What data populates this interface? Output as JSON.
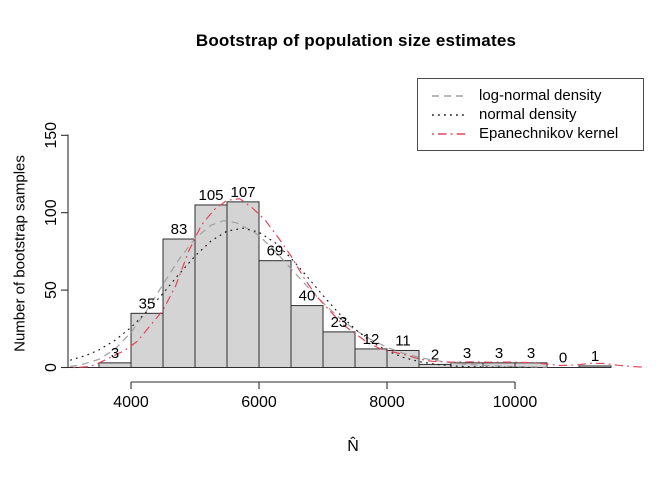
{
  "title": "Bootstrap of population size estimates",
  "xlabel": "N̂",
  "ylabel": "Number of bootstrap samples",
  "colors": {
    "bar_fill": "#d4d4d4",
    "bar_border": "#2e2e2e",
    "axis": "#2e2e2e",
    "text": "#000000",
    "lognormal": "#a0a0a0",
    "normal": "#1f1f1f",
    "epanechnikov": "#e2455c"
  },
  "legend": {
    "items": [
      {
        "label": "log-normal density",
        "style": "dashed",
        "color": "#a0a0a0"
      },
      {
        "label": "normal density",
        "style": "dotted",
        "color": "#1f1f1f"
      },
      {
        "label": "Epanechnikov kernel",
        "style": "dashdot",
        "color": "#e2455c"
      }
    ]
  },
  "chart_data": {
    "type": "bar",
    "subtype": "histogram-with-density-curves",
    "title": "Bootstrap of population size estimates",
    "xlabel": "N̂",
    "ylabel": "Number of bootstrap samples",
    "bin_start": 3000,
    "bin_width": 500,
    "counts": [
      0,
      3,
      35,
      83,
      105,
      107,
      69,
      40,
      23,
      12,
      11,
      2,
      3,
      3,
      3,
      0,
      1
    ],
    "bar_labels": [
      "",
      "3",
      "35",
      "83",
      "105",
      "107",
      "69",
      "40",
      "23",
      "12",
      "11",
      "2",
      "3",
      "3",
      "3",
      "0",
      "1"
    ],
    "x_ticks": [
      4000,
      6000,
      8000,
      10000
    ],
    "y_ticks": [
      0,
      50,
      100,
      150
    ],
    "xlim": [
      3000,
      12100
    ],
    "ylim": [
      0,
      150
    ],
    "grid": false,
    "legend_position": "top-right",
    "series": [
      {
        "name": "log-normal density",
        "style": "dashed",
        "color": "#a0a0a0",
        "points": [
          [
            3050,
            0.7
          ],
          [
            3200,
            1.5
          ],
          [
            3500,
            5.3
          ],
          [
            3750,
            11.9
          ],
          [
            4000,
            22.6
          ],
          [
            4250,
            37.1
          ],
          [
            4500,
            53.7
          ],
          [
            4750,
            69.9
          ],
          [
            5000,
            83.3
          ],
          [
            5250,
            91.9
          ],
          [
            5450,
            94.9
          ],
          [
            5650,
            93.5
          ],
          [
            5900,
            88
          ],
          [
            6000,
            85.2
          ],
          [
            6250,
            75.2
          ],
          [
            6500,
            63.9
          ],
          [
            6750,
            52.5
          ],
          [
            7000,
            41.7
          ],
          [
            7250,
            32.3
          ],
          [
            7500,
            24.3
          ],
          [
            7750,
            18
          ],
          [
            8000,
            13.1
          ],
          [
            8250,
            9.3
          ],
          [
            8500,
            6.5
          ],
          [
            8750,
            4.5
          ],
          [
            9000,
            3.1
          ],
          [
            9250,
            2
          ],
          [
            9500,
            1.4
          ],
          [
            10000,
            0.6
          ],
          [
            10500,
            0.2
          ]
        ]
      },
      {
        "name": "normal density",
        "style": "dotted",
        "color": "#1f1f1f",
        "points": [
          [
            3050,
            4.7
          ],
          [
            3300,
            7.8
          ],
          [
            3500,
            11.4
          ],
          [
            3750,
            17.6
          ],
          [
            4000,
            25.9
          ],
          [
            4250,
            36.2
          ],
          [
            4500,
            47.9
          ],
          [
            4750,
            60.3
          ],
          [
            5000,
            72
          ],
          [
            5250,
            81.7
          ],
          [
            5500,
            88.1
          ],
          [
            5750,
            90
          ],
          [
            6000,
            87.4
          ],
          [
            6250,
            80.7
          ],
          [
            6500,
            70.7
          ],
          [
            6750,
            58.8
          ],
          [
            7000,
            46.5
          ],
          [
            7250,
            34.9
          ],
          [
            7500,
            24.8
          ],
          [
            7750,
            16.8
          ],
          [
            8000,
            10.8
          ],
          [
            8250,
            6.6
          ],
          [
            8500,
            3.8
          ],
          [
            8750,
            2.1
          ],
          [
            9000,
            1.1
          ],
          [
            9250,
            0.6
          ],
          [
            9500,
            0.3
          ],
          [
            10000,
            0.1
          ],
          [
            10300,
            0
          ]
        ]
      },
      {
        "name": "Epanechnikov kernel",
        "style": "dashdot",
        "color": "#e2455c",
        "points": [
          [
            3100,
            0
          ],
          [
            3350,
            0.5
          ],
          [
            3500,
            3
          ],
          [
            3700,
            7
          ],
          [
            3900,
            11
          ],
          [
            4100,
            17
          ],
          [
            4300,
            27
          ],
          [
            4500,
            37
          ],
          [
            4700,
            53
          ],
          [
            4900,
            75
          ],
          [
            5100,
            92
          ],
          [
            5300,
            102
          ],
          [
            5500,
            108
          ],
          [
            5700,
            109
          ],
          [
            5900,
            103
          ],
          [
            6100,
            95
          ],
          [
            6300,
            84
          ],
          [
            6500,
            72
          ],
          [
            6700,
            58
          ],
          [
            6900,
            46
          ],
          [
            7100,
            37
          ],
          [
            7300,
            28
          ],
          [
            7500,
            22
          ],
          [
            7700,
            16
          ],
          [
            7900,
            12
          ],
          [
            8100,
            10
          ],
          [
            8300,
            8
          ],
          [
            8500,
            5.5
          ],
          [
            8700,
            4
          ],
          [
            9000,
            3.5
          ],
          [
            9300,
            3.6
          ],
          [
            9600,
            3.4
          ],
          [
            9900,
            3.5
          ],
          [
            10200,
            3.2
          ],
          [
            10450,
            2.4
          ],
          [
            10700,
            1.3
          ],
          [
            10950,
            1.6
          ],
          [
            11200,
            2.8
          ],
          [
            11400,
            2.6
          ],
          [
            11600,
            1.5
          ],
          [
            11850,
            0.6
          ],
          [
            12050,
            0.2
          ]
        ]
      }
    ]
  }
}
